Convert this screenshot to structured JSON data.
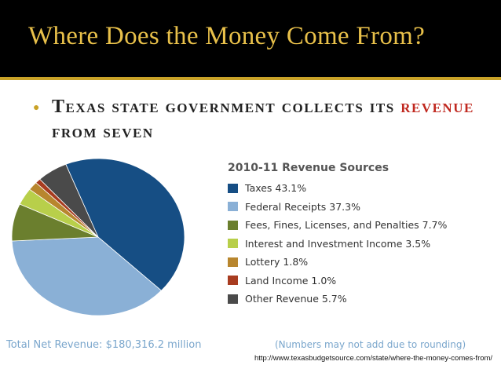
{
  "slide": {
    "title": "Where Does the Money Come From?",
    "bullet_pre": "Texas state government collects its ",
    "bullet_highlight": "revenue",
    "bullet_post": " from seven",
    "source_url": "http://www.texasbudgetsource.com/state/where-the-money-comes-from/"
  },
  "colors": {
    "title_gold": "#e8c04a",
    "highlight_red": "#c0281f",
    "footer_blue": "#7aa6cc"
  },
  "chart_data": {
    "type": "pie",
    "title": "2010-11 Revenue Sources",
    "slices": [
      {
        "label": "Taxes",
        "value": 43.1,
        "display": "Taxes 43.1%",
        "color": "#164e84"
      },
      {
        "label": "Federal Receipts",
        "value": 37.3,
        "display": "Federal Receipts 37.3%",
        "color": "#8ab0d6"
      },
      {
        "label": "Fees, Fines, Licenses, and Penalties",
        "value": 7.7,
        "display": "Fees, Fines, Licenses, and Penalties 7.7%",
        "color": "#6b7f2e"
      },
      {
        "label": "Interest and Investment Income",
        "value": 3.5,
        "display": "Interest and Investment Income 3.5%",
        "color": "#b8cf4a"
      },
      {
        "label": "Lottery",
        "value": 1.8,
        "display": "Lottery 1.8%",
        "color": "#b8862e"
      },
      {
        "label": "Land Income",
        "value": 1.0,
        "display": "Land Income 1.0%",
        "color": "#a83c20"
      },
      {
        "label": "Other Revenue",
        "value": 5.7,
        "display": "Other Revenue 5.7%",
        "color": "#4a4a4a"
      }
    ],
    "legend_position": "right",
    "footer_left": "Total Net Revenue: $180,316.2 million",
    "footer_right": "(Numbers may not add due to rounding)"
  }
}
